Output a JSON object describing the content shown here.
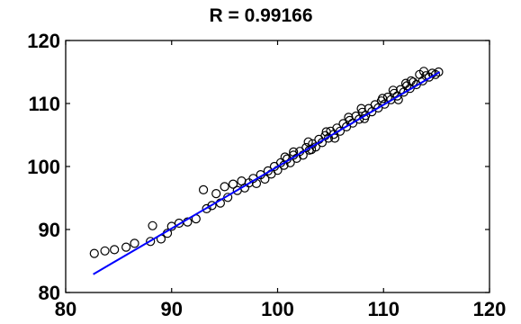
{
  "chart_data": {
    "type": "scatter",
    "title": "R = 0.99166",
    "xlabel": "",
    "ylabel": "",
    "xlim": [
      80,
      120
    ],
    "ylim": [
      80,
      120
    ],
    "xticks": [
      80,
      90,
      100,
      110,
      120
    ],
    "yticks": [
      80,
      90,
      100,
      110,
      120
    ],
    "xtick_labels": [
      "80",
      "90",
      "100",
      "110",
      "120"
    ],
    "ytick_labels": [
      "80",
      "90",
      "100",
      "110",
      "120"
    ],
    "grid": false,
    "marker": "circle-open",
    "colors": {
      "points": "#000000",
      "fit_line": "#0000ff",
      "axes": "#000000"
    },
    "fit_line": {
      "x": [
        82.6,
        115.3
      ],
      "y": [
        82.9,
        115.0
      ]
    },
    "points": [
      [
        82.7,
        86.2
      ],
      [
        83.7,
        86.6
      ],
      [
        84.6,
        86.8
      ],
      [
        85.7,
        87.2
      ],
      [
        86.5,
        87.8
      ],
      [
        88.0,
        88.1
      ],
      [
        88.2,
        90.6
      ],
      [
        89.0,
        88.5
      ],
      [
        89.6,
        89.4
      ],
      [
        90.0,
        90.5
      ],
      [
        90.7,
        91.0
      ],
      [
        91.5,
        91.2
      ],
      [
        92.3,
        91.7
      ],
      [
        93.0,
        96.3
      ],
      [
        93.3,
        93.3
      ],
      [
        93.8,
        93.8
      ],
      [
        94.2,
        95.7
      ],
      [
        94.6,
        94.2
      ],
      [
        95.0,
        96.8
      ],
      [
        95.3,
        95.1
      ],
      [
        95.8,
        97.2
      ],
      [
        96.2,
        96.2
      ],
      [
        96.6,
        97.7
      ],
      [
        96.9,
        96.6
      ],
      [
        97.3,
        97.4
      ],
      [
        97.7,
        98.1
      ],
      [
        98.0,
        97.3
      ],
      [
        98.4,
        98.7
      ],
      [
        98.8,
        98.0
      ],
      [
        99.1,
        99.3
      ],
      [
        99.4,
        98.8
      ],
      [
        99.7,
        100.0
      ],
      [
        100.0,
        99.4
      ],
      [
        100.3,
        100.6
      ],
      [
        100.6,
        100.2
      ],
      [
        100.9,
        101.2
      ],
      [
        101.2,
        100.6
      ],
      [
        101.5,
        101.8
      ],
      [
        101.8,
        101.3
      ],
      [
        102.1,
        102.4
      ],
      [
        102.4,
        101.8
      ],
      [
        102.7,
        103.0
      ],
      [
        103.0,
        102.6
      ],
      [
        103.3,
        103.6
      ],
      [
        103.6,
        103.1
      ],
      [
        103.9,
        104.3
      ],
      [
        104.2,
        103.8
      ],
      [
        104.5,
        104.9
      ],
      [
        104.8,
        104.5
      ],
      [
        105.0,
        105.6
      ],
      [
        105.3,
        105.1
      ],
      [
        105.6,
        106.1
      ],
      [
        105.9,
        105.6
      ],
      [
        106.2,
        106.8
      ],
      [
        106.5,
        106.3
      ],
      [
        106.8,
        107.3
      ],
      [
        107.1,
        106.9
      ],
      [
        107.4,
        108.0
      ],
      [
        107.7,
        107.5
      ],
      [
        108.0,
        108.6
      ],
      [
        108.3,
        108.1
      ],
      [
        108.6,
        109.2
      ],
      [
        108.9,
        108.7
      ],
      [
        109.2,
        109.8
      ],
      [
        109.5,
        109.3
      ],
      [
        109.8,
        110.4
      ],
      [
        110.1,
        109.9
      ],
      [
        110.4,
        111.0
      ],
      [
        110.7,
        110.6
      ],
      [
        111.0,
        111.6
      ],
      [
        111.3,
        111.2
      ],
      [
        111.6,
        112.2
      ],
      [
        111.9,
        111.8
      ],
      [
        112.2,
        112.8
      ],
      [
        112.5,
        112.4
      ],
      [
        112.8,
        113.4
      ],
      [
        113.1,
        113.0
      ],
      [
        113.4,
        114.6
      ],
      [
        113.7,
        113.6
      ],
      [
        114.0,
        114.4
      ],
      [
        114.3,
        114.2
      ],
      [
        114.6,
        114.8
      ],
      [
        114.9,
        114.6
      ],
      [
        115.2,
        115.0
      ],
      [
        101.5,
        102.3
      ],
      [
        103.2,
        102.7
      ],
      [
        104.6,
        105.5
      ],
      [
        106.7,
        107.8
      ],
      [
        108.2,
        107.6
      ],
      [
        109.9,
        110.8
      ],
      [
        111.4,
        110.6
      ],
      [
        112.6,
        113.6
      ],
      [
        113.8,
        115.1
      ],
      [
        100.7,
        101.5
      ],
      [
        102.9,
        103.9
      ],
      [
        105.4,
        104.5
      ],
      [
        107.9,
        109.2
      ],
      [
        110.9,
        112.1
      ],
      [
        112.1,
        113.2
      ]
    ]
  }
}
